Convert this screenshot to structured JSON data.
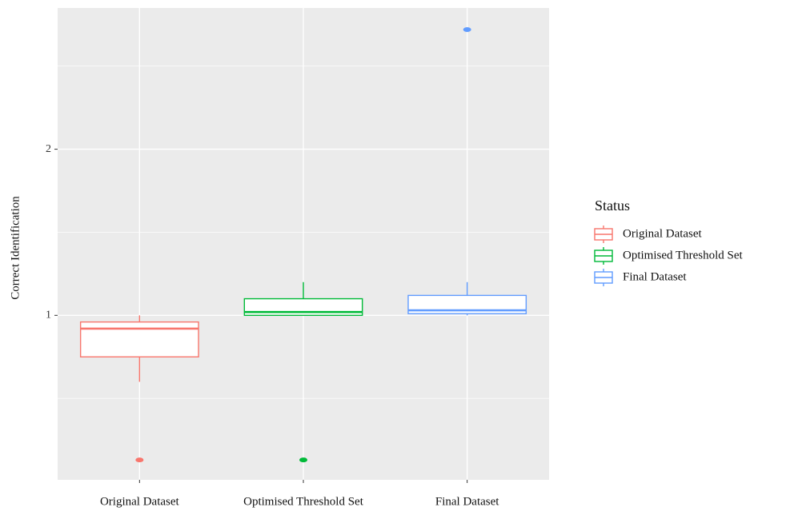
{
  "chart_data": {
    "type": "box",
    "y_label": "Correct Identification",
    "categories": [
      "Original Dataset",
      "Optimised Threshold Set",
      "Final Dataset"
    ],
    "legend_title": "Status",
    "legend_position": "right",
    "series": [
      {
        "name": "Original Dataset",
        "color": "#F8766D",
        "whisker_low": 0.6,
        "q1": 0.75,
        "median": 0.92,
        "q3": 0.96,
        "whisker_high": 1.0,
        "outliers": [
          0.13
        ]
      },
      {
        "name": "Optimised Threshold Set",
        "color": "#00BA38",
        "whisker_low": 1.0,
        "q1": 1.0,
        "median": 1.02,
        "q3": 1.1,
        "whisker_high": 1.2,
        "outliers": [
          0.13
        ]
      },
      {
        "name": "Final Dataset",
        "color": "#619CFF",
        "whisker_low": 1.0,
        "q1": 1.01,
        "median": 1.03,
        "q3": 1.12,
        "whisker_high": 1.2,
        "outliers": [
          2.72
        ]
      }
    ],
    "ylim": [
      0.01,
      2.85
    ],
    "yticks": [
      1,
      2
    ],
    "minor_yticks": [
      0.5,
      1.5,
      2.5
    ],
    "grid": true
  }
}
